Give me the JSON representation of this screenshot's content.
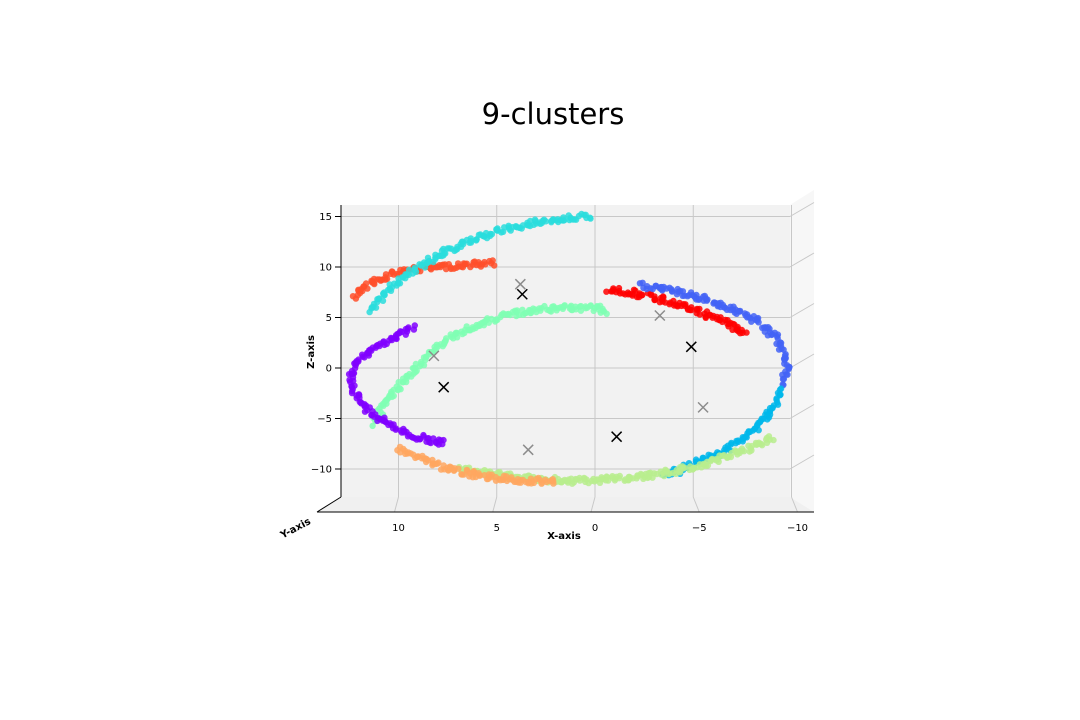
{
  "chart_data": {
    "type": "scatter",
    "title": "9-clusters",
    "xlabel": "X-axis",
    "ylabel": "Y-axis",
    "zlabel": "Z-axis",
    "xlim": [
      12.5,
      -12
    ],
    "zlim": [
      -13,
      16
    ],
    "x_ticks": [
      10,
      5,
      0,
      -5,
      -10
    ],
    "x_tick_labels": [
      "10",
      "5",
      "0",
      "−5",
      "−10"
    ],
    "z_ticks": [
      15,
      10,
      5,
      0,
      -5,
      -10
    ],
    "z_tick_labels": [
      "15",
      "10",
      "5",
      "0",
      "−5",
      "−10"
    ],
    "grid": true,
    "series": [
      {
        "color": "#80ffb4",
        "x": [
          -0.6,
          -0.3,
          1.2,
          3.0,
          4.8,
          6.3,
          7.5,
          8.6,
          9.6,
          10.6,
          11.3
        ],
        "z": [
          5.4,
          5.9,
          6.0,
          5.8,
          5.0,
          4.1,
          2.8,
          1.0,
          -1.0,
          -3.3,
          -5.6
        ],
        "kind": "arc"
      },
      {
        "color": "#8000ff",
        "x": [
          9.2,
          10.8,
          12.0,
          12.4,
          12.2,
          11.6,
          10.6,
          9.2,
          7.6
        ],
        "z": [
          4.0,
          2.4,
          1.0,
          -0.9,
          -2.6,
          -4.2,
          -5.5,
          -6.8,
          -7.5
        ]
      },
      {
        "color": "#ff4f2a",
        "x": [
          12.2,
          11.7,
          11.0,
          10.2,
          9.2,
          8.0,
          6.6,
          5.1
        ],
        "z": [
          7.0,
          8.0,
          8.8,
          9.4,
          9.8,
          10.0,
          10.2,
          10.4
        ]
      },
      {
        "color": "#ff0000",
        "x": [
          -0.7,
          -2.0,
          -3.6,
          -5.1,
          -6.7,
          -7.7
        ],
        "z": [
          7.8,
          7.4,
          6.7,
          5.7,
          4.5,
          3.2
        ]
      },
      {
        "color": "#4363f6",
        "x": [
          -2.4,
          -4.0,
          -5.6,
          -7.1,
          -8.3,
          -9.3,
          -9.8,
          -9.6
        ],
        "z": [
          8.2,
          7.6,
          6.8,
          5.8,
          4.6,
          2.8,
          0.6,
          -1.7
        ]
      },
      {
        "color": "#00b7eb",
        "x": [
          -9.5,
          -9.0,
          -8.3,
          -7.4,
          -6.4,
          -5.3,
          -4.2,
          -3.3
        ],
        "z": [
          -2.2,
          -4.2,
          -5.7,
          -7.2,
          -8.4,
          -9.3,
          -10.2,
          -10.5
        ]
      },
      {
        "color": "#b8ed8e",
        "x": [
          -9.0,
          -7.0,
          -5.0,
          -3.0,
          -1.0,
          1.0,
          3.0,
          5.0,
          7.0
        ],
        "z": [
          -7.0,
          -8.6,
          -9.8,
          -10.6,
          -11.0,
          -11.2,
          -11.0,
          -10.6,
          -10.0
        ]
      },
      {
        "color": "#ffa760",
        "x": [
          10.0,
          9.0,
          8.0,
          7.0,
          6.0,
          5.0,
          4.0,
          2.0
        ],
        "z": [
          -8.0,
          -8.8,
          -9.6,
          -10.2,
          -10.6,
          -10.9,
          -11.1,
          -11.2
        ]
      },
      {
        "color": "#2adddd",
        "x": [
          11.4,
          10.4,
          9.0,
          7.5,
          6.0,
          4.5,
          3.0,
          1.6,
          0.2
        ],
        "z": [
          5.8,
          8.0,
          10.0,
          11.6,
          12.9,
          13.8,
          14.4,
          14.8,
          15.1
        ]
      }
    ],
    "centroids_black": [
      {
        "x": 3.7,
        "z": 7.3
      },
      {
        "x": -4.9,
        "z": 2.1
      },
      {
        "x": 7.7,
        "z": -1.9
      },
      {
        "x": -1.1,
        "z": -6.8
      }
    ],
    "centroids_gray": [
      {
        "x": 3.8,
        "z": 8.3
      },
      {
        "x": -3.3,
        "z": 5.2
      },
      {
        "x": 8.2,
        "z": 1.2
      },
      {
        "x": -5.5,
        "z": -3.9
      },
      {
        "x": 3.4,
        "z": -8.1
      }
    ]
  }
}
